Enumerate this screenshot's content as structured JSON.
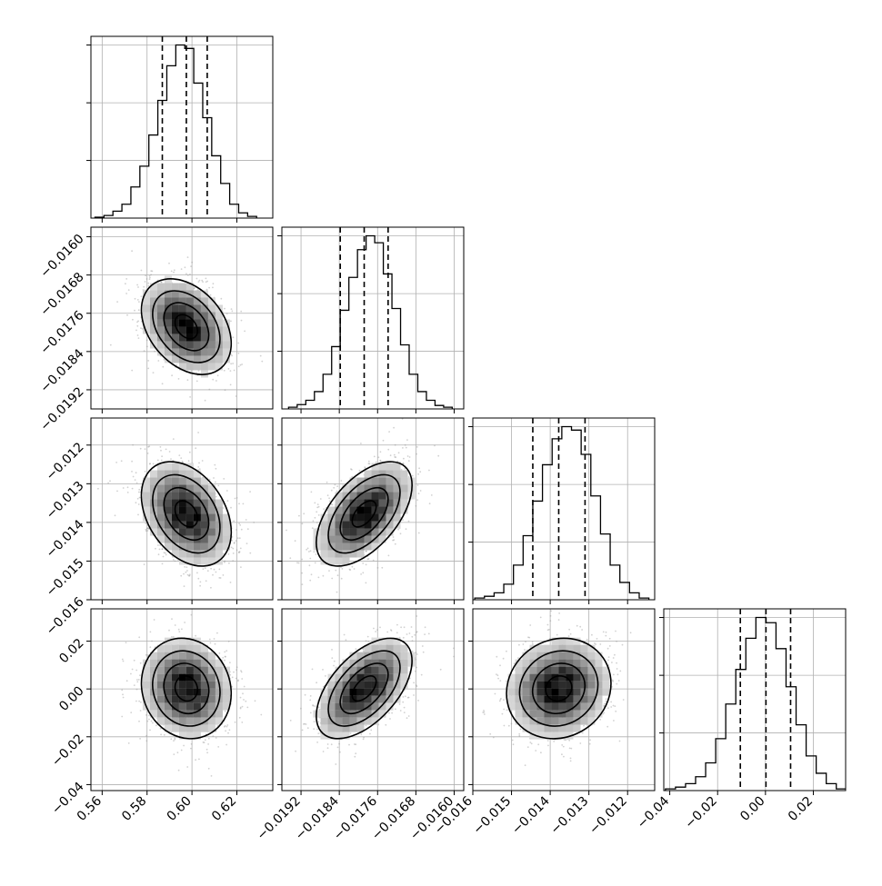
{
  "chart_data": {
    "type": "corner",
    "title": "",
    "parameters": [
      "",
      "",
      "",
      ""
    ],
    "histogram_style": "step",
    "grid": true,
    "quantiles": [
      0.16,
      0.5,
      0.84
    ],
    "colors": {
      "line": "#000000",
      "grid": "#b0b0b0",
      "points": "#9a9a9a"
    },
    "axes": [
      {
        "range": [
          0.555,
          0.636
        ],
        "ticks": [
          0.56,
          0.58,
          0.6,
          0.62
        ],
        "tick_labels": [
          "0.56",
          "0.58",
          "0.60",
          "0.62"
        ]
      },
      {
        "range": [
          -0.0196,
          -0.0158
        ],
        "ticks": [
          -0.0192,
          -0.0184,
          -0.0176,
          -0.0168,
          -0.016
        ],
        "tick_labels": [
          "−0.0192",
          "−0.0184",
          "−0.0176",
          "−0.0168",
          "−0.0160"
        ]
      },
      {
        "range": [
          -0.016,
          -0.0113
        ],
        "ticks": [
          -0.016,
          -0.015,
          -0.014,
          -0.013,
          -0.012
        ],
        "tick_labels": [
          "−0.016",
          "−0.015",
          "−0.014",
          "−0.013",
          "−0.012"
        ]
      },
      {
        "range": [
          -0.0425,
          0.0335
        ],
        "ticks": [
          -0.04,
          -0.02,
          0.0,
          0.02
        ],
        "tick_labels": [
          "−0.04",
          "−0.02",
          "0.00",
          "0.02"
        ]
      }
    ],
    "y_tick_labels": [
      [
        "−0.0160",
        "−0.0168",
        "−0.0176",
        "−0.0184",
        "−0.0192"
      ],
      [
        "−0.012",
        "−0.013",
        "−0.014",
        "−0.015",
        "−0.016"
      ],
      [
        "0.02",
        "0.00",
        "−0.02",
        "−0.04"
      ]
    ],
    "marginals": [
      {
        "bins": [
          0.5568,
          0.5608,
          0.5648,
          0.5688,
          0.5728,
          0.5768,
          0.5808,
          0.5848,
          0.5888,
          0.5928,
          0.5968,
          0.6008,
          0.6048,
          0.6088,
          0.6128,
          0.6168,
          0.6208,
          0.6248,
          0.6288
        ],
        "counts": [
          0.5,
          1.5,
          4,
          8,
          18,
          30,
          48,
          68,
          88,
          100,
          98,
          78,
          58,
          36,
          20,
          8,
          3,
          1
        ],
        "quantile_values": [
          0.5868,
          0.5975,
          0.6068
        ]
      },
      {
        "bins": [
          -0.01946,
          -0.01928,
          -0.0191,
          -0.01892,
          -0.01874,
          -0.01856,
          -0.01838,
          -0.0182,
          -0.01802,
          -0.01784,
          -0.01766,
          -0.01748,
          -0.0173,
          -0.01712,
          -0.01694,
          -0.01676,
          -0.01658,
          -0.0164,
          -0.01622,
          -0.01604
        ],
        "counts": [
          1,
          2.5,
          5,
          10,
          20,
          36,
          57,
          76,
          92,
          100,
          96,
          78,
          58,
          37,
          20,
          10,
          5,
          2,
          1
        ],
        "quantile_values": [
          -0.01838,
          -0.01788,
          -0.01738
        ]
      },
      {
        "bins": [
          -0.01595,
          -0.0157,
          -0.01545,
          -0.0152,
          -0.01495,
          -0.0147,
          -0.01445,
          -0.0142,
          -0.01395,
          -0.0137,
          -0.01345,
          -0.0132,
          -0.01295,
          -0.0127,
          -0.01245,
          -0.0122,
          -0.01195,
          -0.0117,
          -0.01145
        ],
        "counts": [
          1,
          2,
          4,
          9,
          20,
          37,
          57,
          78,
          93,
          100,
          98,
          84,
          60,
          38,
          20,
          10,
          4,
          1
        ],
        "quantile_values": [
          -0.01445,
          -0.01378,
          -0.0131
        ]
      },
      {
        "bins": [
          -0.0418,
          -0.0376,
          -0.0334,
          -0.0292,
          -0.025,
          -0.0208,
          -0.0166,
          -0.0124,
          -0.0082,
          -0.004,
          0.0002,
          0.0044,
          0.0086,
          0.0128,
          0.017,
          0.0212,
          0.0254,
          0.0296,
          0.0338
        ],
        "counts": [
          1,
          2,
          4,
          8,
          16,
          30,
          50,
          70,
          88,
          100,
          97,
          82,
          60,
          38,
          20,
          10,
          4,
          1
        ],
        "quantile_values": [
          -0.0105,
          0.0002,
          0.0105
        ]
      }
    ],
    "correlations": {
      "1-0": -0.35,
      "2-0": -0.35,
      "2-1": 0.55,
      "3-0": -0.1,
      "3-1": 0.55,
      "3-2": 0.1
    }
  }
}
